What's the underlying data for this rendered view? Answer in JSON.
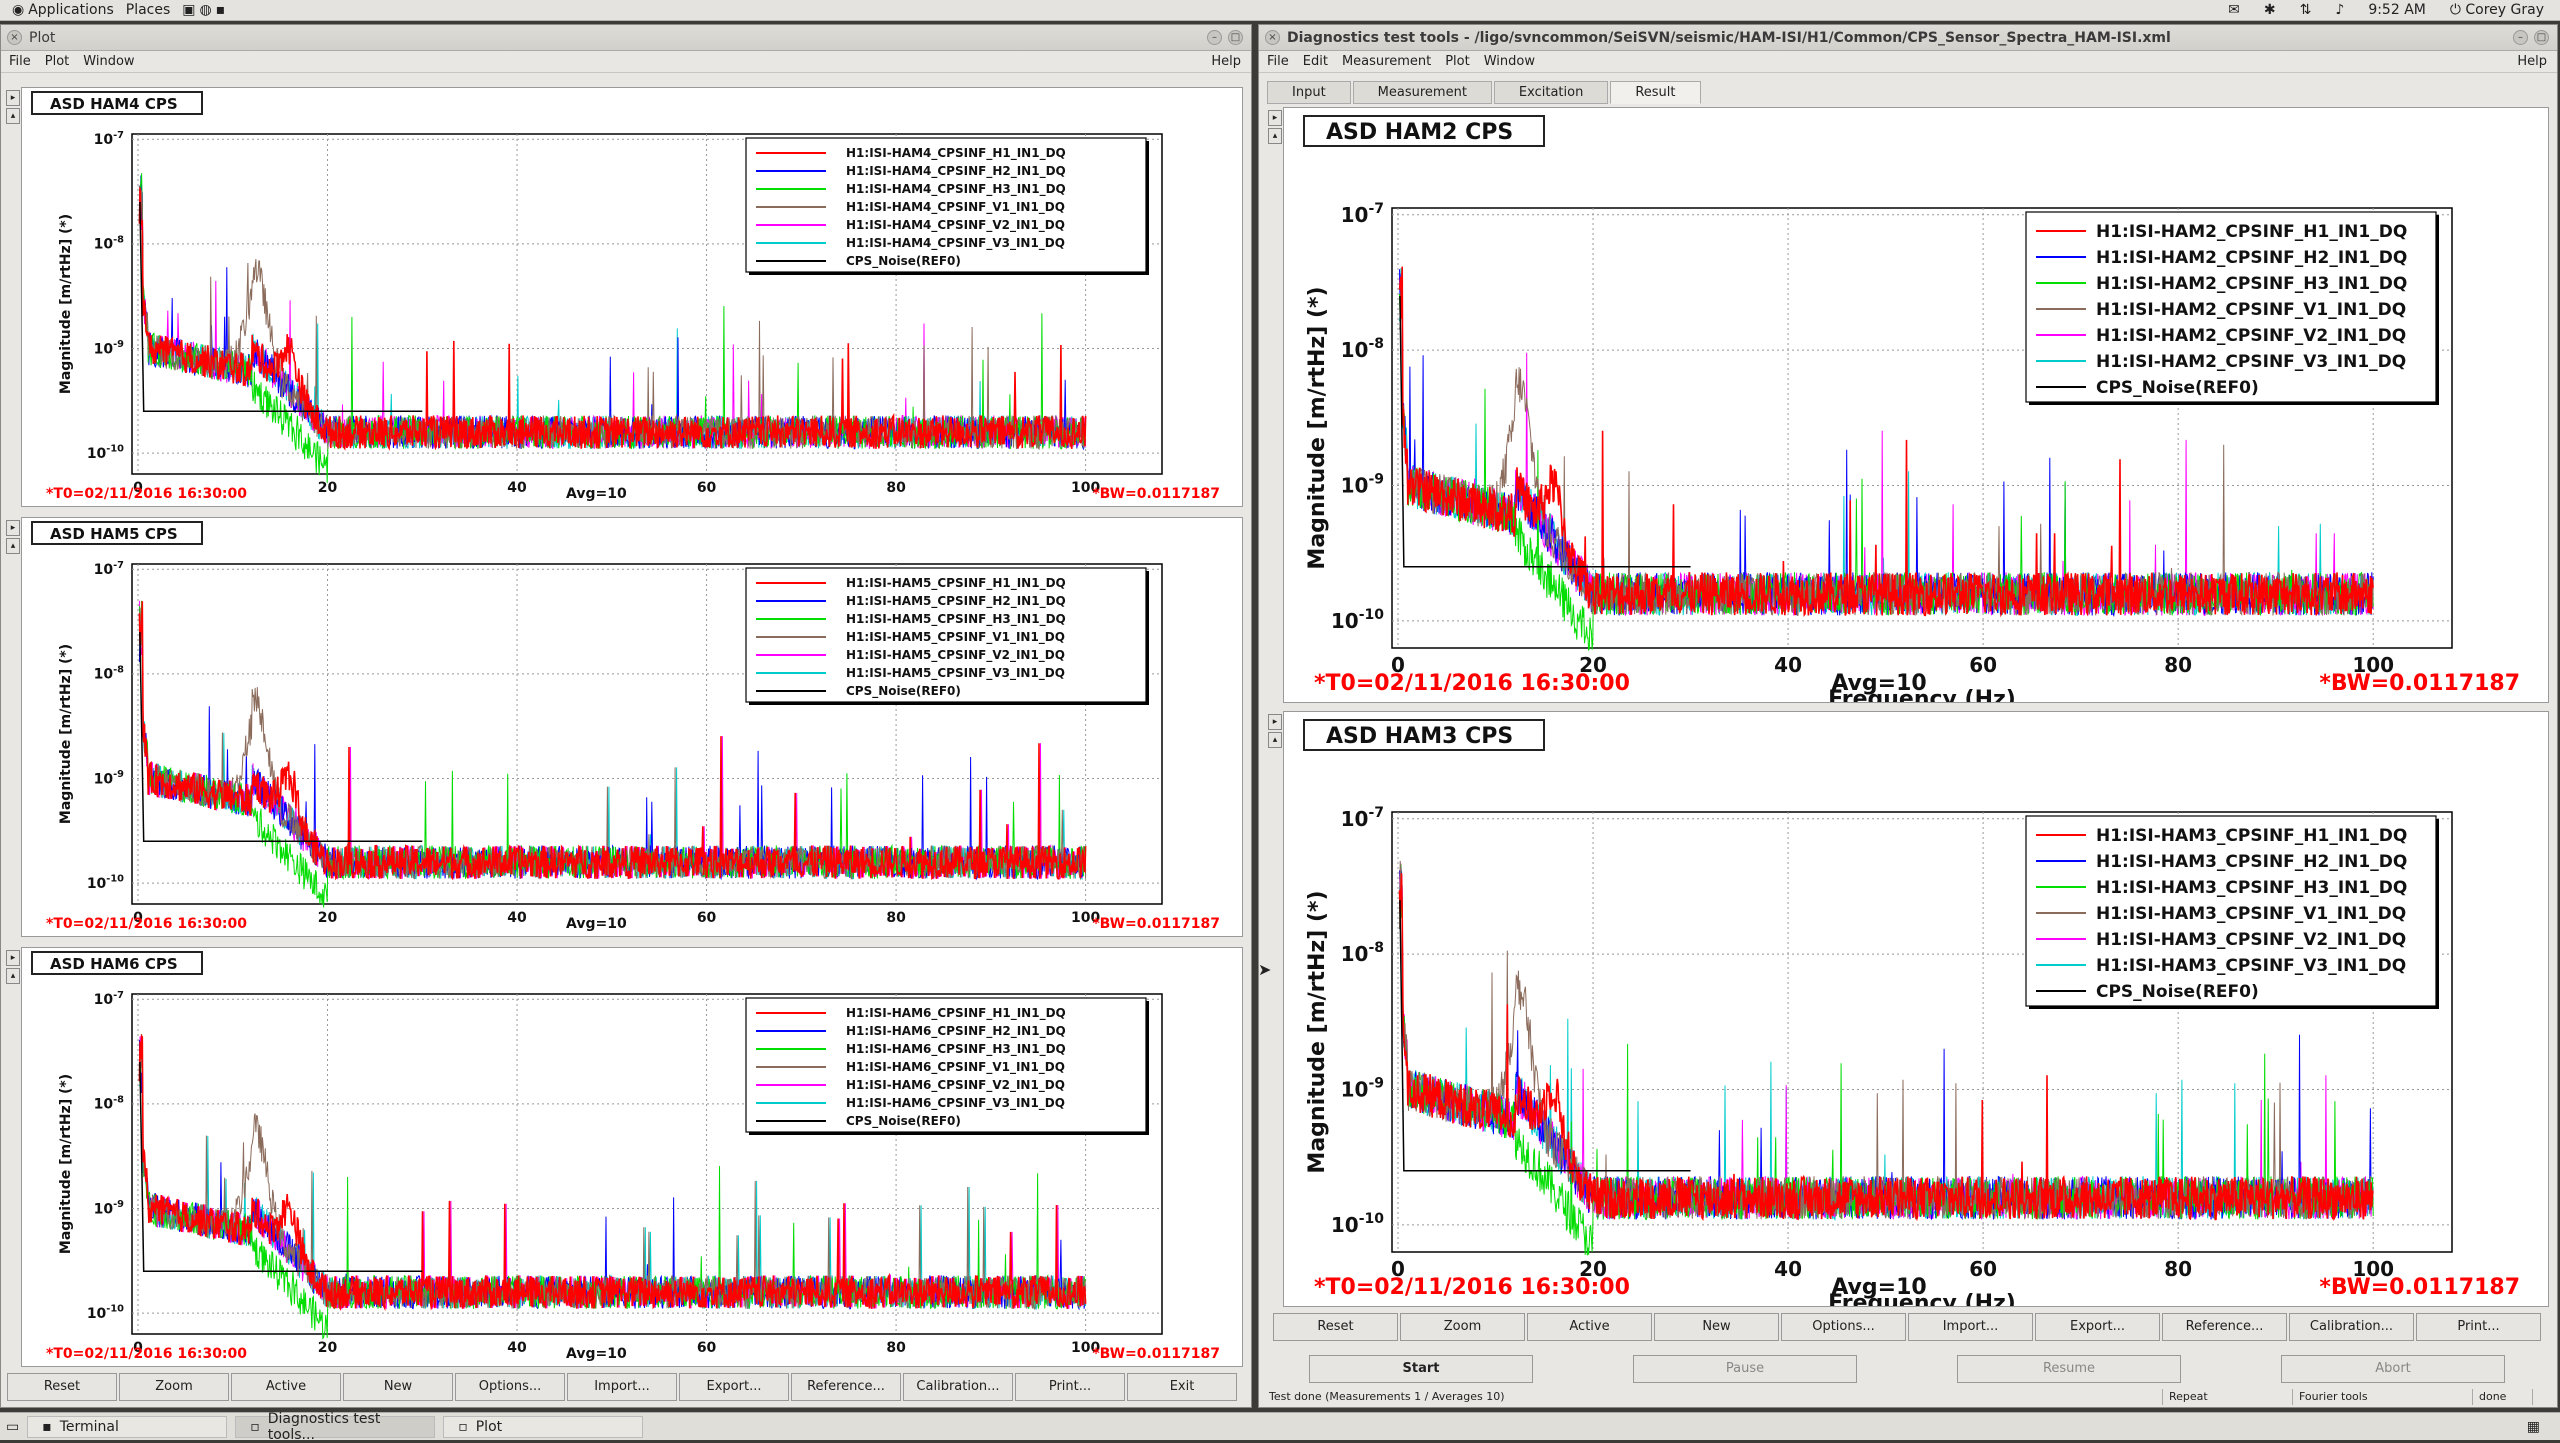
{
  "topbar": {
    "applications": "Applications",
    "places": "Places",
    "time": "9:52 AM",
    "user": "Corey Gray"
  },
  "left_window": {
    "title": "Plot",
    "menu": [
      "File",
      "Plot",
      "Window"
    ],
    "help": "Help",
    "buttons": [
      "Reset",
      "Zoom",
      "Active",
      "New",
      "Options...",
      "Import...",
      "Export...",
      "Reference...",
      "Calibration...",
      "Print...",
      "Exit"
    ]
  },
  "right_window": {
    "title": "Diagnostics test tools - /ligo/svncommon/SeiSVN/seismic/HAM-ISI/H1/Common/CPS_Sensor_Spectra_HAM-ISI.xml",
    "menu": [
      "File",
      "Edit",
      "Measurement",
      "Plot",
      "Window"
    ],
    "help": "Help",
    "tabs": [
      "Input",
      "Measurement",
      "Excitation",
      "Result"
    ],
    "buttons": [
      "Reset",
      "Zoom",
      "Active",
      "New",
      "Options...",
      "Import...",
      "Export...",
      "Reference...",
      "Calibration...",
      "Print..."
    ],
    "control_buttons": [
      "Start",
      "Pause",
      "Resume",
      "Abort"
    ],
    "status": [
      "Test done (Measurements 1 / Averages 10)",
      "Repeat",
      "Fourier tools",
      "done"
    ]
  },
  "plot_common": {
    "ylabel": "Magnitude [m/rtHz] (*)",
    "xlabel": "Frequency (Hz)",
    "t0": "*T0=02/11/2016 16:30:00",
    "avg": "Avg=10",
    "bw": "*BW=0.0117187",
    "noise_label": "CPS_Noise(REF0)"
  },
  "series_colors": [
    "#ff0000",
    "#0000ff",
    "#00dd00",
    "#8b6b5b",
    "#ff00ff",
    "#00cccc",
    "#000000"
  ],
  "taskbar": {
    "items": [
      "Terminal",
      "Diagnostics test tools...",
      "Plot"
    ]
  },
  "chart_data": [
    {
      "type": "line",
      "title": "ASD HAM4 CPS",
      "xlim": [
        0,
        100
      ],
      "ylim": [
        1e-10,
        1e-07
      ],
      "ylog": true,
      "x_ticks": [
        0,
        20,
        40,
        60,
        80,
        100
      ],
      "y_ticks": [
        "10-10",
        "10-9",
        "10-8",
        "10-7"
      ],
      "legend_placement": "top-right",
      "grid": true,
      "series": [
        {
          "name": "H1:ISI-HAM4_CPSINF_H1_IN1_DQ"
        },
        {
          "name": "H1:ISI-HAM4_CPSINF_H2_IN1_DQ"
        },
        {
          "name": "H1:ISI-HAM4_CPSINF_H3_IN1_DQ"
        },
        {
          "name": "H1:ISI-HAM4_CPSINF_V1_IN1_DQ"
        },
        {
          "name": "H1:ISI-HAM4_CPSINF_V2_IN1_DQ"
        },
        {
          "name": "H1:ISI-HAM4_CPSINF_V3_IN1_DQ"
        },
        {
          "name": "CPS_Noise(REF0)"
        }
      ]
    },
    {
      "type": "line",
      "title": "ASD HAM5 CPS",
      "xlim": [
        0,
        100
      ],
      "ylim": [
        1e-10,
        1e-07
      ],
      "ylog": true,
      "x_ticks": [
        0,
        20,
        40,
        60,
        80,
        100
      ],
      "y_ticks": [
        "10-10",
        "10-9",
        "10-8",
        "10-7"
      ],
      "legend_placement": "top-right",
      "grid": true,
      "series": [
        {
          "name": "H1:ISI-HAM5_CPSINF_H1_IN1_DQ"
        },
        {
          "name": "H1:ISI-HAM5_CPSINF_H2_IN1_DQ"
        },
        {
          "name": "H1:ISI-HAM5_CPSINF_H3_IN1_DQ"
        },
        {
          "name": "H1:ISI-HAM5_CPSINF_V1_IN1_DQ"
        },
        {
          "name": "H1:ISI-HAM5_CPSINF_V2_IN1_DQ"
        },
        {
          "name": "H1:ISI-HAM5_CPSINF_V3_IN1_DQ"
        },
        {
          "name": "CPS_Noise(REF0)"
        }
      ]
    },
    {
      "type": "line",
      "title": "ASD HAM6 CPS",
      "xlim": [
        0,
        100
      ],
      "ylim": [
        1e-10,
        1e-07
      ],
      "ylog": true,
      "x_ticks": [
        0,
        20,
        40,
        60,
        80,
        100
      ],
      "y_ticks": [
        "10-10",
        "10-9",
        "10-8",
        "10-7"
      ],
      "legend_placement": "top-right",
      "grid": true,
      "series": [
        {
          "name": "H1:ISI-HAM6_CPSINF_H1_IN1_DQ"
        },
        {
          "name": "H1:ISI-HAM6_CPSINF_H2_IN1_DQ"
        },
        {
          "name": "H1:ISI-HAM6_CPSINF_H3_IN1_DQ"
        },
        {
          "name": "H1:ISI-HAM6_CPSINF_V1_IN1_DQ"
        },
        {
          "name": "H1:ISI-HAM6_CPSINF_V2_IN1_DQ"
        },
        {
          "name": "H1:ISI-HAM6_CPSINF_V3_IN1_DQ"
        },
        {
          "name": "CPS_Noise(REF0)"
        }
      ]
    },
    {
      "type": "line",
      "title": "ASD HAM2 CPS",
      "xlim": [
        0,
        100
      ],
      "ylim": [
        1e-10,
        1e-07
      ],
      "ylog": true,
      "x_ticks": [
        0,
        20,
        40,
        60,
        80,
        100
      ],
      "y_ticks": [
        "10-10",
        "10-9",
        "10-8",
        "10-7"
      ],
      "legend_placement": "top-right",
      "grid": true,
      "series": [
        {
          "name": "H1:ISI-HAM2_CPSINF_H1_IN1_DQ"
        },
        {
          "name": "H1:ISI-HAM2_CPSINF_H2_IN1_DQ"
        },
        {
          "name": "H1:ISI-HAM2_CPSINF_H3_IN1_DQ"
        },
        {
          "name": "H1:ISI-HAM2_CPSINF_V1_IN1_DQ"
        },
        {
          "name": "H1:ISI-HAM2_CPSINF_V2_IN1_DQ"
        },
        {
          "name": "H1:ISI-HAM2_CPSINF_V3_IN1_DQ"
        },
        {
          "name": "CPS_Noise(REF0)"
        }
      ]
    },
    {
      "type": "line",
      "title": "ASD HAM3 CPS",
      "xlim": [
        0,
        100
      ],
      "ylim": [
        1e-10,
        1e-07
      ],
      "ylog": true,
      "x_ticks": [
        0,
        20,
        40,
        60,
        80,
        100
      ],
      "y_ticks": [
        "10-10",
        "10-9",
        "10-8",
        "10-7"
      ],
      "legend_placement": "top-right",
      "grid": true,
      "series": [
        {
          "name": "H1:ISI-HAM3_CPSINF_H1_IN1_DQ"
        },
        {
          "name": "H1:ISI-HAM3_CPSINF_H2_IN1_DQ"
        },
        {
          "name": "H1:ISI-HAM3_CPSINF_H3_IN1_DQ"
        },
        {
          "name": "H1:ISI-HAM3_CPSINF_V1_IN1_DQ"
        },
        {
          "name": "H1:ISI-HAM3_CPSINF_V2_IN1_DQ"
        },
        {
          "name": "H1:ISI-HAM3_CPSINF_V3_IN1_DQ"
        },
        {
          "name": "CPS_Noise(REF0)"
        }
      ]
    }
  ]
}
